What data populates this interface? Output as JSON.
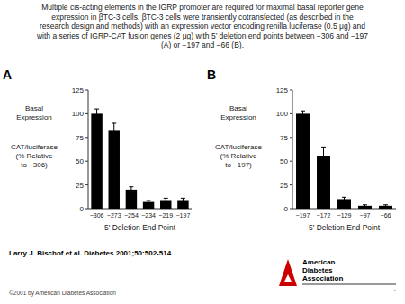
{
  "chart_data": [
    {
      "type": "bar",
      "title": "Multiple cis-acting elements in the IGRP promoter are required for maximal basal reporter gene\nexpression in βTC-3 cells. βTC-3 cells were transiently cotransfected (as described in the\nresearch design and methods) with an expression vector encoding renilla luciferase (0.5 μg) and\nwith a series of IGRP-CAT fusion genes (2 μg) with 5’ deletion end points between −306 and −197\n(A) or −197 and −66 (B).",
      "panel_label": "A",
      "categories": [
        "−306",
        "−273",
        "−254",
        "−234",
        "−219",
        "−197"
      ],
      "values": [
        100,
        82,
        20,
        7,
        9,
        9
      ],
      "errors": [
        5,
        8,
        3,
        1.5,
        2,
        2
      ],
      "color": "#000000",
      "xlabel": "5' Deletion End Point",
      "ylabel": [
        "Basal\nExpression",
        "CAT/luciferase\n(% Relative\nto −306)"
      ],
      "ylim": [
        0,
        125
      ],
      "yticks": [
        0,
        25,
        50,
        75,
        100,
        125
      ],
      "annotations": [
        "Larry J. Bischof et al. Diabetes 2001;50:502-514",
        "©2001 by American Diabetes Association",
        "American",
        "Diabetes",
        "Association",
        "."
      ]
    },
    {
      "type": "bar",
      "panel_label": "B",
      "categories": [
        "−197",
        "−172",
        "−129",
        "−97",
        "−66"
      ],
      "values": [
        100,
        55,
        10,
        3,
        3
      ],
      "errors": [
        3,
        10,
        2,
        1,
        1
      ],
      "color": "#000000",
      "xlabel": "5' Deletion End Point",
      "ylabel": [
        "Basal\nExpression",
        "CAT/luciferase\n(% Relative\nto −197)"
      ],
      "ylim": [
        0,
        125
      ],
      "yticks": [
        0,
        25,
        50,
        75,
        100,
        125
      ]
    }
  ]
}
